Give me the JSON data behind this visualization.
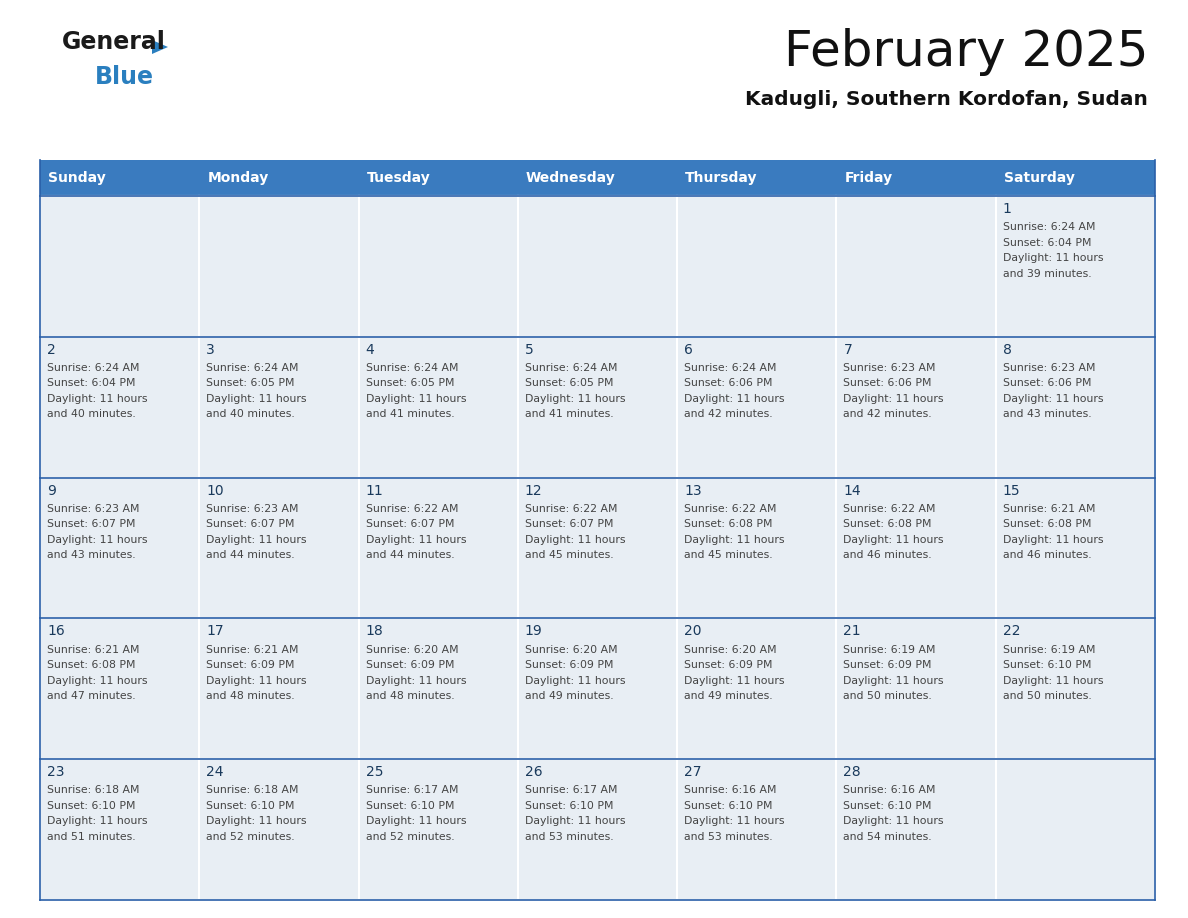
{
  "title": "February 2025",
  "subtitle": "Kadugli, Southern Kordofan, Sudan",
  "header_bg": "#3a7bbf",
  "header_text": "#ffffff",
  "cell_bg": "#e8eef4",
  "day_text_color": "#1a3a5c",
  "info_text_color": "#444444",
  "border_color": "#2a5fa8",
  "days_of_week": [
    "Sunday",
    "Monday",
    "Tuesday",
    "Wednesday",
    "Thursday",
    "Friday",
    "Saturday"
  ],
  "logo_general_color": "#1a1a1a",
  "logo_blue_color": "#2a7fbf",
  "calendar_data": [
    {
      "day": 1,
      "col": 6,
      "row": 0,
      "sunrise": "6:24 AM",
      "sunset": "6:04 PM",
      "daylight_hours": 11,
      "daylight_minutes": 39
    },
    {
      "day": 2,
      "col": 0,
      "row": 1,
      "sunrise": "6:24 AM",
      "sunset": "6:04 PM",
      "daylight_hours": 11,
      "daylight_minutes": 40
    },
    {
      "day": 3,
      "col": 1,
      "row": 1,
      "sunrise": "6:24 AM",
      "sunset": "6:05 PM",
      "daylight_hours": 11,
      "daylight_minutes": 40
    },
    {
      "day": 4,
      "col": 2,
      "row": 1,
      "sunrise": "6:24 AM",
      "sunset": "6:05 PM",
      "daylight_hours": 11,
      "daylight_minutes": 41
    },
    {
      "day": 5,
      "col": 3,
      "row": 1,
      "sunrise": "6:24 AM",
      "sunset": "6:05 PM",
      "daylight_hours": 11,
      "daylight_minutes": 41
    },
    {
      "day": 6,
      "col": 4,
      "row": 1,
      "sunrise": "6:24 AM",
      "sunset": "6:06 PM",
      "daylight_hours": 11,
      "daylight_minutes": 42
    },
    {
      "day": 7,
      "col": 5,
      "row": 1,
      "sunrise": "6:23 AM",
      "sunset": "6:06 PM",
      "daylight_hours": 11,
      "daylight_minutes": 42
    },
    {
      "day": 8,
      "col": 6,
      "row": 1,
      "sunrise": "6:23 AM",
      "sunset": "6:06 PM",
      "daylight_hours": 11,
      "daylight_minutes": 43
    },
    {
      "day": 9,
      "col": 0,
      "row": 2,
      "sunrise": "6:23 AM",
      "sunset": "6:07 PM",
      "daylight_hours": 11,
      "daylight_minutes": 43
    },
    {
      "day": 10,
      "col": 1,
      "row": 2,
      "sunrise": "6:23 AM",
      "sunset": "6:07 PM",
      "daylight_hours": 11,
      "daylight_minutes": 44
    },
    {
      "day": 11,
      "col": 2,
      "row": 2,
      "sunrise": "6:22 AM",
      "sunset": "6:07 PM",
      "daylight_hours": 11,
      "daylight_minutes": 44
    },
    {
      "day": 12,
      "col": 3,
      "row": 2,
      "sunrise": "6:22 AM",
      "sunset": "6:07 PM",
      "daylight_hours": 11,
      "daylight_minutes": 45
    },
    {
      "day": 13,
      "col": 4,
      "row": 2,
      "sunrise": "6:22 AM",
      "sunset": "6:08 PM",
      "daylight_hours": 11,
      "daylight_minutes": 45
    },
    {
      "day": 14,
      "col": 5,
      "row": 2,
      "sunrise": "6:22 AM",
      "sunset": "6:08 PM",
      "daylight_hours": 11,
      "daylight_minutes": 46
    },
    {
      "day": 15,
      "col": 6,
      "row": 2,
      "sunrise": "6:21 AM",
      "sunset": "6:08 PM",
      "daylight_hours": 11,
      "daylight_minutes": 46
    },
    {
      "day": 16,
      "col": 0,
      "row": 3,
      "sunrise": "6:21 AM",
      "sunset": "6:08 PM",
      "daylight_hours": 11,
      "daylight_minutes": 47
    },
    {
      "day": 17,
      "col": 1,
      "row": 3,
      "sunrise": "6:21 AM",
      "sunset": "6:09 PM",
      "daylight_hours": 11,
      "daylight_minutes": 48
    },
    {
      "day": 18,
      "col": 2,
      "row": 3,
      "sunrise": "6:20 AM",
      "sunset": "6:09 PM",
      "daylight_hours": 11,
      "daylight_minutes": 48
    },
    {
      "day": 19,
      "col": 3,
      "row": 3,
      "sunrise": "6:20 AM",
      "sunset": "6:09 PM",
      "daylight_hours": 11,
      "daylight_minutes": 49
    },
    {
      "day": 20,
      "col": 4,
      "row": 3,
      "sunrise": "6:20 AM",
      "sunset": "6:09 PM",
      "daylight_hours": 11,
      "daylight_minutes": 49
    },
    {
      "day": 21,
      "col": 5,
      "row": 3,
      "sunrise": "6:19 AM",
      "sunset": "6:09 PM",
      "daylight_hours": 11,
      "daylight_minutes": 50
    },
    {
      "day": 22,
      "col": 6,
      "row": 3,
      "sunrise": "6:19 AM",
      "sunset": "6:10 PM",
      "daylight_hours": 11,
      "daylight_minutes": 50
    },
    {
      "day": 23,
      "col": 0,
      "row": 4,
      "sunrise": "6:18 AM",
      "sunset": "6:10 PM",
      "daylight_hours": 11,
      "daylight_minutes": 51
    },
    {
      "day": 24,
      "col": 1,
      "row": 4,
      "sunrise": "6:18 AM",
      "sunset": "6:10 PM",
      "daylight_hours": 11,
      "daylight_minutes": 52
    },
    {
      "day": 25,
      "col": 2,
      "row": 4,
      "sunrise": "6:17 AM",
      "sunset": "6:10 PM",
      "daylight_hours": 11,
      "daylight_minutes": 52
    },
    {
      "day": 26,
      "col": 3,
      "row": 4,
      "sunrise": "6:17 AM",
      "sunset": "6:10 PM",
      "daylight_hours": 11,
      "daylight_minutes": 53
    },
    {
      "day": 27,
      "col": 4,
      "row": 4,
      "sunrise": "6:16 AM",
      "sunset": "6:10 PM",
      "daylight_hours": 11,
      "daylight_minutes": 53
    },
    {
      "day": 28,
      "col": 5,
      "row": 4,
      "sunrise": "6:16 AM",
      "sunset": "6:10 PM",
      "daylight_hours": 11,
      "daylight_minutes": 54
    }
  ]
}
